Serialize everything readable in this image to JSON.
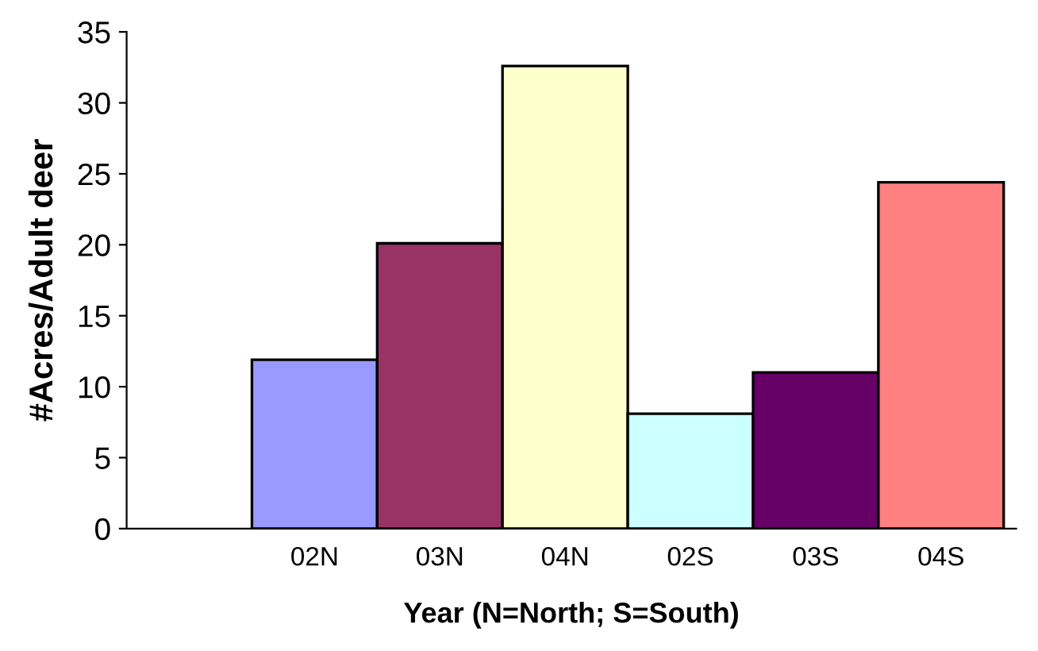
{
  "chart_data": {
    "type": "bar",
    "xlabel": "Year (N=North; S=South)",
    "ylabel": "#Acres/Adult deer",
    "categories": [
      "02N",
      "03N",
      "04N",
      "02S",
      "03S",
      "04S"
    ],
    "values": [
      11.9,
      20.1,
      32.6,
      8.1,
      11.0,
      24.4
    ],
    "colors": [
      "#9999ff",
      "#993366",
      "#ffffcc",
      "#ccffff",
      "#660066",
      "#ff8080"
    ],
    "ylim": [
      0,
      35
    ],
    "yticks": [
      0,
      5,
      10,
      15,
      20,
      25,
      30,
      35
    ],
    "grid": false
  }
}
